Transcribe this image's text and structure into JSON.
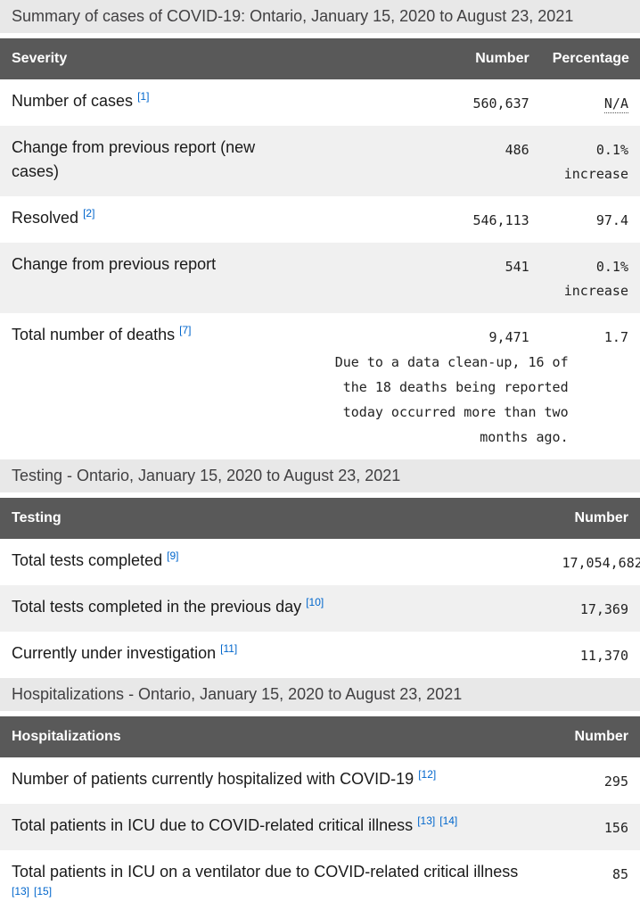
{
  "colors": {
    "table_header_bg": "#595959",
    "table_header_text": "#ffffff",
    "section_caption_bg": "#e8e8e8",
    "section_caption_text": "#414042",
    "zebra_row_bg": "#f0f0f0",
    "body_text": "#1a1a1a",
    "link": "#0066cc"
  },
  "summary_table": {
    "caption": "Summary of cases of COVID-19: Ontario, January 15, 2020 to August 23, 2021",
    "columns": [
      "Severity",
      "Number",
      "Percentage"
    ],
    "rows": [
      {
        "label": "Number of cases",
        "refs": [
          "[1]"
        ],
        "number": "560,637",
        "percentage": "N/A",
        "na": true
      },
      {
        "label": "Change from previous report (new cases)",
        "refs": [],
        "number": "486",
        "percentage": "0.1% increase"
      },
      {
        "label": "Resolved",
        "refs": [
          "[2]"
        ],
        "number": "546,113",
        "percentage": "97.4"
      },
      {
        "label": "Change from previous report",
        "refs": [],
        "number": "541",
        "percentage": "0.1% increase"
      },
      {
        "label": "Total number of deaths",
        "refs": [
          "[7]"
        ],
        "number": "9,471",
        "note": "Due to a data clean-up, 16 of the 18 deaths being reported today occurred more than two months ago.",
        "percentage": "1.7"
      }
    ]
  },
  "testing_table": {
    "caption": "Testing - Ontario, January 15, 2020 to August 23, 2021",
    "columns": [
      "Testing",
      "Number"
    ],
    "rows": [
      {
        "label": "Total tests completed",
        "refs": [
          "[9]"
        ],
        "number": "17,054,682"
      },
      {
        "label": "Total tests completed in the previous day",
        "refs": [
          "[10]"
        ],
        "number": "17,369"
      },
      {
        "label": "Currently under investigation",
        "refs": [
          "[11]"
        ],
        "number": "11,370"
      }
    ]
  },
  "hospitalizations_table": {
    "caption": "Hospitalizations - Ontario, January 15, 2020 to August 23, 2021",
    "columns": [
      "Hospitalizations",
      "Number"
    ],
    "rows": [
      {
        "label": "Number of patients currently hospitalized with COVID-19",
        "refs": [
          "[12]"
        ],
        "number": "295"
      },
      {
        "label": "Total patients in ICU due to COVID-related critical illness",
        "refs": [
          "[13]",
          "[14]"
        ],
        "number": "156"
      },
      {
        "label": "Total patients in ICU on a ventilator due to COVID-related critical illness",
        "refs": [
          "[13]",
          "[15]"
        ],
        "number": "85"
      }
    ]
  }
}
